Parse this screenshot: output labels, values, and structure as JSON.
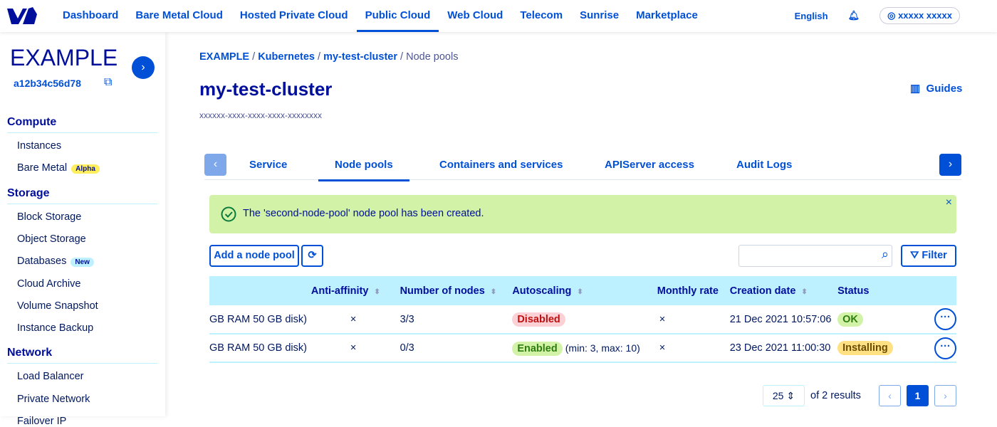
{
  "topbar": {
    "nav": [
      "Dashboard",
      "Bare Metal Cloud",
      "Hosted Private Cloud",
      "Public Cloud",
      "Web Cloud",
      "Telecom",
      "Sunrise",
      "Marketplace"
    ],
    "active": "Public Cloud",
    "language": "English",
    "user": "xxxxx xxxxx"
  },
  "sidebar": {
    "project_name": "EXAMPLE",
    "project_id": "a12b34c56d78",
    "sections": [
      {
        "title": "Compute",
        "items": [
          "Instances",
          "Bare Metal"
        ]
      },
      {
        "title": "Storage",
        "items": [
          "Block Storage",
          "Object Storage",
          "Databases",
          "Cloud Archive",
          "Volume Snapshot",
          "Instance Backup"
        ]
      },
      {
        "title": "Network",
        "items": [
          "Load Balancer",
          "Private Network",
          "Failover IP"
        ]
      }
    ],
    "badges": {
      "alpha": "Alpha",
      "new": "New"
    }
  },
  "breadcrumb": [
    "EXAMPLE",
    "Kubernetes",
    "my-test-cluster",
    "Node pools"
  ],
  "title": "my-test-cluster",
  "uuid": "xxxxxx-xxxx-xxxx-xxxx-xxxxxxxx",
  "guides": "Guides",
  "tabs": [
    "Service",
    "Node pools",
    "Containers and services",
    "APIServer access",
    "Audit Logs"
  ],
  "active_tab": "Node pools",
  "alert": "The 'second-node-pool' node pool has been created.",
  "toolbar": {
    "add": "Add a node pool",
    "filter": "Filter",
    "search_value": ""
  },
  "table": {
    "headers": [
      "",
      "Anti-affinity",
      "Number of nodes",
      "Autoscaling",
      "Monthly rate",
      "Creation date",
      "Status"
    ],
    "rows": [
      {
        "flavor": "GB RAM 50 GB disk)",
        "anti": "×",
        "nodes": "3/3",
        "autoscaling": "Disabled",
        "range": "",
        "monthly": "×",
        "date": "21 Dec 2021 10:57:06",
        "status": "OK"
      },
      {
        "flavor": "GB RAM 50 GB disk)",
        "anti": "×",
        "nodes": "0/3",
        "autoscaling": "Enabled",
        "range": "(min: 3, max: 10)",
        "monthly": "×",
        "date": "23 Dec 2021 11:00:30",
        "status": "Installing"
      }
    ]
  },
  "pagination": {
    "page_size": "25",
    "results": "of 2 results",
    "current": "1"
  },
  "colors": {
    "primary": "#0050d7",
    "dark": "#000e9c",
    "success_bg": "#d2f2a8",
    "header_bg": "#bef1ff",
    "disabled_bg": "#fcd1d6",
    "warning_bg": "#ffe083"
  }
}
